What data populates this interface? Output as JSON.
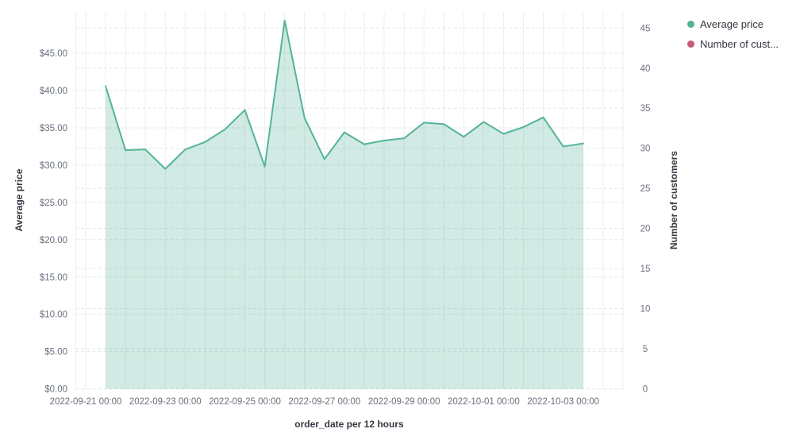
{
  "chart_data": {
    "type": "area",
    "title": "",
    "x_axis": {
      "label": "order_date per 12 hours",
      "tick_labels": [
        "2022-09-21 00:00",
        "2022-09-23 00:00",
        "2022-09-25 00:00",
        "2022-09-27 00:00",
        "2022-09-29 00:00",
        "2022-10-01 00:00",
        "2022-10-03 00:00"
      ]
    },
    "y_axis_left": {
      "label": "Average price",
      "tick_labels": [
        "$0.00",
        "$5.00",
        "$10.00",
        "$15.00",
        "$20.00",
        "$25.00",
        "$30.00",
        "$35.00",
        "$40.00",
        "$45.00"
      ],
      "range": [
        0,
        50.5
      ]
    },
    "y_axis_right": {
      "label": "Number of customers",
      "tick_labels": [
        "0",
        "5",
        "10",
        "15",
        "20",
        "25",
        "30",
        "35",
        "40",
        "45"
      ],
      "range": [
        0,
        47
      ]
    },
    "grid": {
      "horizontal": "dashed",
      "vertical": "solid"
    },
    "legend": {
      "position": "top-right",
      "items": [
        {
          "label": "Average price",
          "color": "#54B399"
        },
        {
          "label": "Number of cust...",
          "color": "#C75A78"
        }
      ]
    },
    "series": [
      {
        "name": "Average price",
        "axis": "left",
        "type": "area",
        "color": "#54B399",
        "fill_opacity": 0.27,
        "x": [
          "2022-09-21 12:00",
          "2022-09-22 00:00",
          "2022-09-22 12:00",
          "2022-09-23 00:00",
          "2022-09-23 12:00",
          "2022-09-24 00:00",
          "2022-09-24 12:00",
          "2022-09-25 00:00",
          "2022-09-25 12:00",
          "2022-09-26 00:00",
          "2022-09-26 12:00",
          "2022-09-27 00:00",
          "2022-09-27 12:00",
          "2022-09-28 00:00",
          "2022-09-28 12:00",
          "2022-09-29 00:00",
          "2022-09-29 12:00",
          "2022-09-30 00:00",
          "2022-09-30 12:00",
          "2022-10-01 00:00",
          "2022-10-01 12:00",
          "2022-10-02 00:00",
          "2022-10-02 12:00",
          "2022-10-03 00:00",
          "2022-10-03 12:00"
        ],
        "values": [
          40.6,
          32.0,
          32.1,
          29.5,
          32.1,
          33.1,
          34.8,
          37.4,
          29.8,
          49.4,
          36.3,
          30.8,
          34.4,
          32.8,
          33.3,
          33.6,
          35.7,
          35.5,
          33.8,
          35.8,
          34.2,
          35.1,
          36.4,
          32.5,
          32.9
        ]
      }
    ]
  },
  "colors": {
    "tick_label": "#69707D",
    "axis_title": "#343741",
    "grid_horizontal": "#e2e5eb",
    "grid_vertical": "#eceef2",
    "background": "#ffffff"
  }
}
